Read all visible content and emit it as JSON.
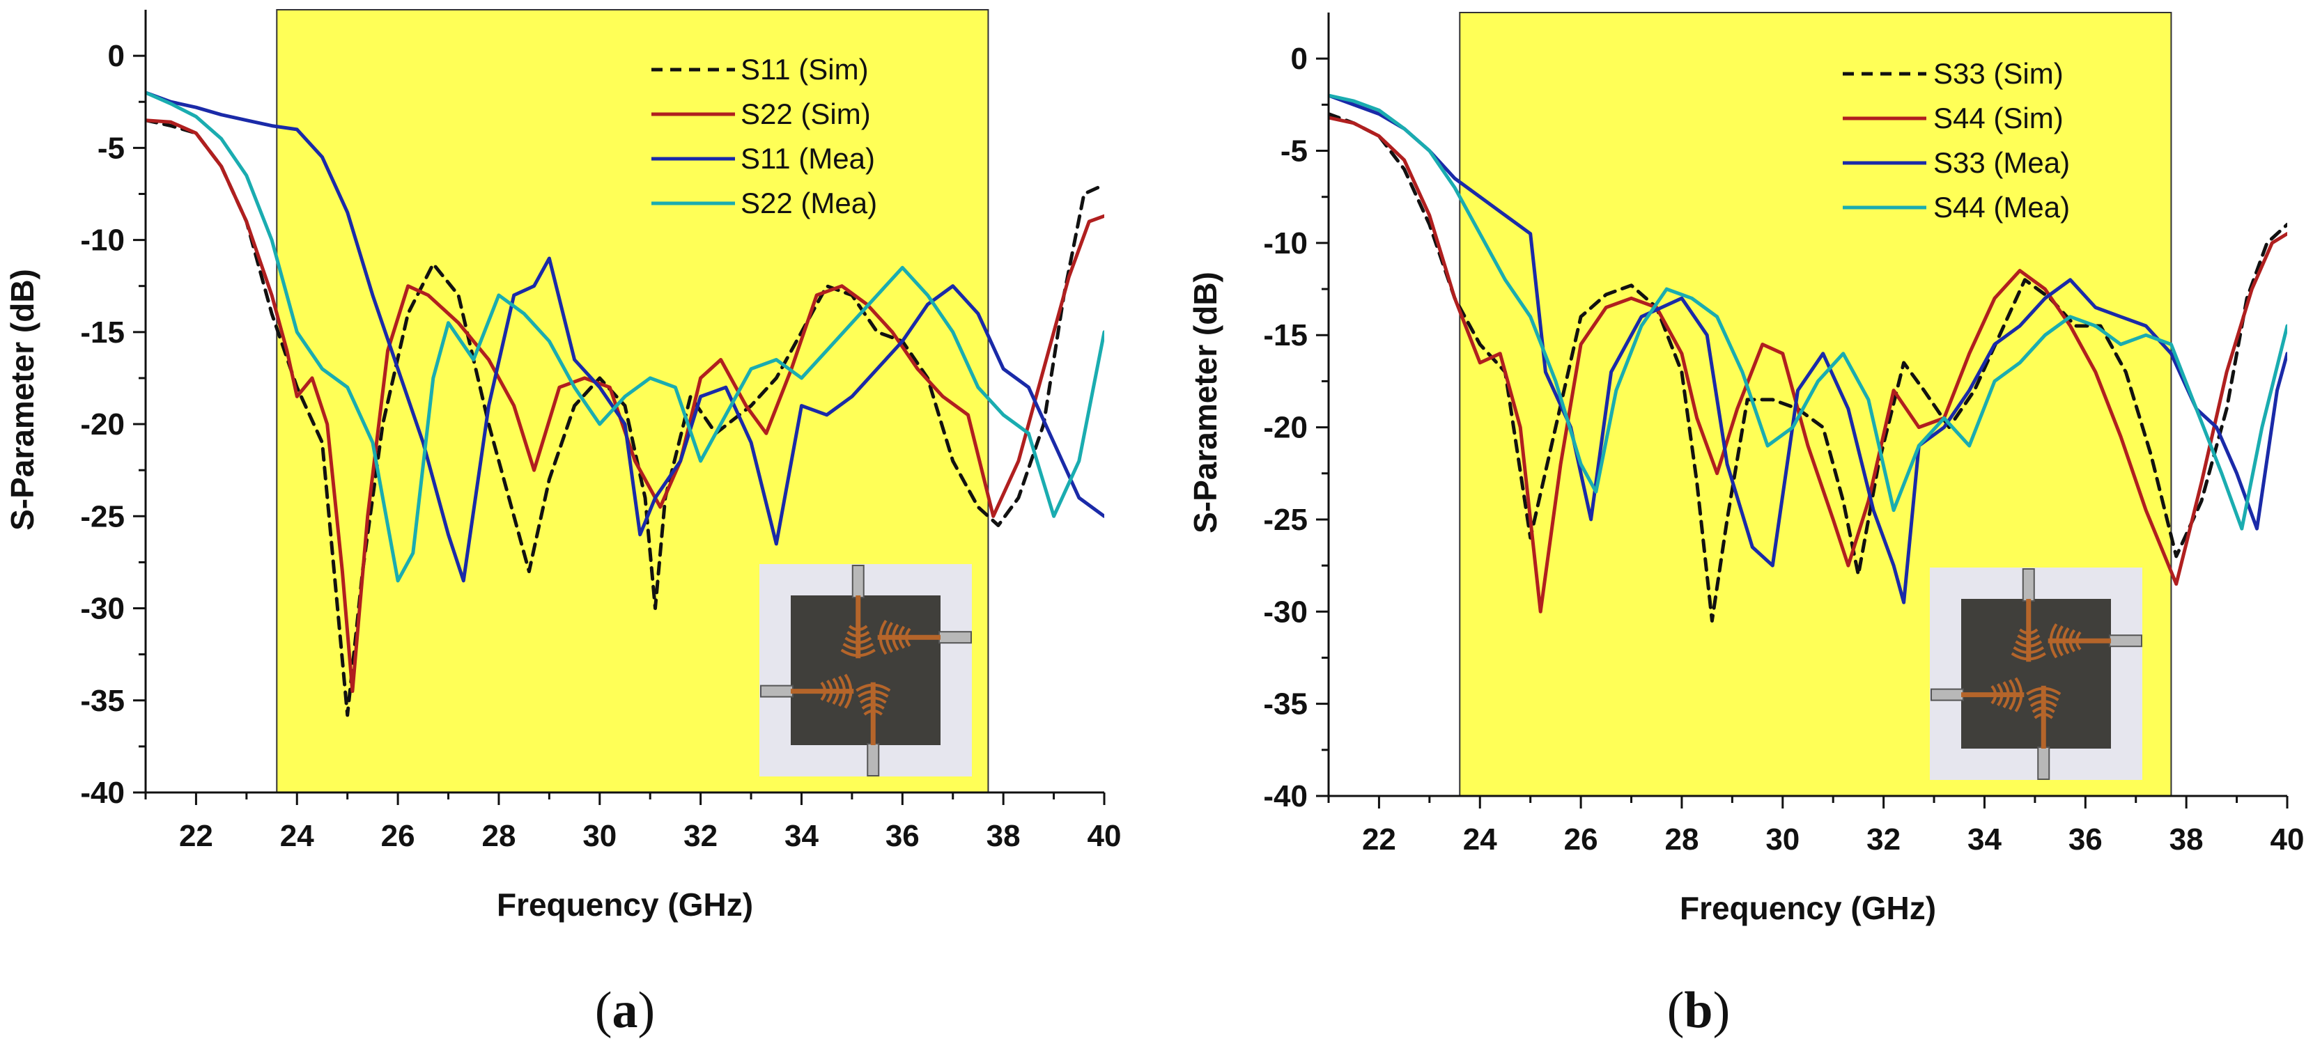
{
  "colors": {
    "highlight": "#ffff57",
    "sim_dashed": "#111111",
    "sim_red": "#b01f1f",
    "mea_blue": "#1a2aa8",
    "mea_cyan": "#1aacb0",
    "inset_bg": "#e6e6ee",
    "inset_board": "#403f3b",
    "inset_copper": "#b5652a"
  },
  "chart_data": [
    {
      "type": "line",
      "panel": "a",
      "caption": "(a)",
      "caption_letter": "a",
      "xlabel": "Frequency (GHz)",
      "ylabel": "S-Parameter (dB)",
      "xlim": [
        21,
        40
      ],
      "ylim": [
        -40,
        2.5
      ],
      "xticks": [
        22,
        24,
        26,
        28,
        30,
        32,
        34,
        36,
        38,
        40
      ],
      "yticks": [
        0,
        -5,
        -10,
        -15,
        -20,
        -25,
        -30,
        -35,
        -40
      ],
      "xtick_labels": [
        "22",
        "24",
        "26",
        "28",
        "30",
        "32",
        "34",
        "36",
        "38",
        "40"
      ],
      "ytick_labels": [
        "0",
        "-5",
        "-10",
        "-15",
        "-20",
        "-25",
        "-30",
        "-35",
        "-40"
      ],
      "highlight_band": [
        23.6,
        37.7
      ],
      "legend_position": "top-right",
      "series": [
        {
          "name": "S11 (Sim)",
          "style": "dashed",
          "color_key": "sim_dashed",
          "x": [
            21,
            21.5,
            22,
            22.5,
            23,
            23.5,
            24,
            24.5,
            25,
            25.3,
            25.7,
            26.2,
            26.7,
            27.2,
            27.8,
            28.3,
            28.6,
            29,
            29.5,
            30,
            30.5,
            30.9,
            31.1,
            31.3,
            31.8,
            32.3,
            33,
            33.5,
            34,
            34.5,
            35,
            35.5,
            36,
            36.5,
            37,
            37.5,
            37.9,
            38.3,
            38.8,
            39.2,
            39.6,
            40
          ],
          "y": [
            -3.5,
            -3.8,
            -4.2,
            -6,
            -9,
            -14,
            -18,
            -21,
            -35.8,
            -28,
            -20,
            -14,
            -11.3,
            -13,
            -20,
            -25,
            -28,
            -23,
            -19,
            -17.5,
            -19,
            -24,
            -30,
            -24,
            -18.5,
            -20.5,
            -19,
            -17.5,
            -15,
            -12.5,
            -13,
            -15,
            -15.5,
            -17.5,
            -22,
            -24.5,
            -25.5,
            -24,
            -20,
            -13,
            -7.5,
            -7
          ]
        },
        {
          "name": "S22 (Sim)",
          "style": "solid",
          "color_key": "sim_red",
          "x": [
            21,
            21.5,
            22,
            22.5,
            23,
            23.5,
            23.8,
            24,
            24.3,
            24.6,
            24.9,
            25.1,
            25.4,
            25.8,
            26.2,
            26.6,
            27.2,
            27.8,
            28.3,
            28.7,
            29.2,
            29.7,
            30.2,
            30.7,
            31.2,
            31.6,
            32,
            32.4,
            32.9,
            33.3,
            33.8,
            34.3,
            34.8,
            35.3,
            35.8,
            36.3,
            36.8,
            37.3,
            37.8,
            38.3,
            38.8,
            39.3,
            39.7,
            40
          ],
          "y": [
            -3.5,
            -3.6,
            -4.2,
            -6,
            -9,
            -13,
            -16,
            -18.5,
            -17.5,
            -20,
            -28,
            -34.5,
            -25,
            -16,
            -12.5,
            -13,
            -14.5,
            -16.5,
            -19,
            -22.5,
            -18,
            -17.5,
            -18,
            -22,
            -24.5,
            -22,
            -17.5,
            -16.5,
            -19,
            -20.5,
            -17,
            -13,
            -12.5,
            -13.5,
            -15,
            -17,
            -18.5,
            -19.5,
            -25,
            -22,
            -17,
            -12,
            -9,
            -8.7
          ]
        },
        {
          "name": "S11 (Mea)",
          "style": "solid",
          "color_key": "mea_blue",
          "x": [
            21,
            21.5,
            22,
            22.5,
            23,
            23.5,
            24,
            24.5,
            25,
            25.5,
            26,
            26.5,
            27,
            27.3,
            27.8,
            28.3,
            28.7,
            29,
            29.5,
            30,
            30.5,
            30.8,
            31.1,
            31.6,
            32,
            32.5,
            33,
            33.5,
            34,
            34.5,
            35,
            35.5,
            36,
            36.5,
            37,
            37.5,
            38,
            38.5,
            39,
            39.5,
            40
          ],
          "y": [
            -2,
            -2.5,
            -2.8,
            -3.2,
            -3.5,
            -3.8,
            -4,
            -5.5,
            -8.5,
            -13,
            -17,
            -21,
            -26,
            -28.5,
            -19,
            -13,
            -12.5,
            -11,
            -16.5,
            -18,
            -20,
            -26,
            -24,
            -22,
            -18.5,
            -18,
            -21,
            -26.5,
            -19,
            -19.5,
            -18.5,
            -17,
            -15.5,
            -13.5,
            -12.5,
            -14,
            -17,
            -18,
            -21,
            -24,
            -25
          ]
        },
        {
          "name": "S22 (Mea)",
          "style": "solid",
          "color_key": "mea_cyan",
          "x": [
            21,
            21.5,
            22,
            22.5,
            23,
            23.5,
            24,
            24.5,
            25,
            25.5,
            26,
            26.3,
            26.7,
            27,
            27.5,
            28,
            28.5,
            29,
            29.5,
            30,
            30.5,
            31,
            31.5,
            32,
            32.5,
            33,
            33.5,
            34,
            34.5,
            35,
            35.5,
            36,
            36.5,
            37,
            37.5,
            38,
            38.5,
            39,
            39.5,
            40
          ],
          "y": [
            -2,
            -2.6,
            -3.3,
            -4.5,
            -6.5,
            -10,
            -15,
            -17,
            -18,
            -21,
            -28.5,
            -27,
            -17.5,
            -14.5,
            -16.5,
            -13,
            -14,
            -15.5,
            -18,
            -20,
            -18.5,
            -17.5,
            -18,
            -22,
            -19.5,
            -17,
            -16.5,
            -17.5,
            -16,
            -14.5,
            -13,
            -11.5,
            -13,
            -15,
            -18,
            -19.5,
            -20.5,
            -25,
            -22,
            -15
          ]
        }
      ]
    },
    {
      "type": "line",
      "panel": "b",
      "caption": "(b)",
      "caption_letter": "b",
      "xlabel": "Frequency (GHz)",
      "ylabel": "S-Parameter (dB)",
      "xlim": [
        21,
        40
      ],
      "ylim": [
        -40,
        2.5
      ],
      "xticks": [
        22,
        24,
        26,
        28,
        30,
        32,
        34,
        36,
        38,
        40
      ],
      "yticks": [
        0,
        -5,
        -10,
        -15,
        -20,
        -25,
        -30,
        -35,
        -40
      ],
      "xtick_labels": [
        "22",
        "24",
        "26",
        "28",
        "30",
        "32",
        "34",
        "36",
        "38",
        "40"
      ],
      "ytick_labels": [
        "0",
        "-5",
        "-10",
        "-15",
        "-20",
        "-25",
        "-30",
        "-35",
        "-40"
      ],
      "highlight_band": [
        23.6,
        37.7
      ],
      "legend_position": "top-right",
      "series": [
        {
          "name": "S33 (Sim)",
          "style": "dashed",
          "color_key": "sim_dashed",
          "x": [
            21,
            21.5,
            22,
            22.5,
            23,
            23.5,
            24,
            24.5,
            25,
            25.5,
            26,
            26.5,
            27,
            27.5,
            28,
            28.3,
            28.6,
            28.9,
            29.3,
            29.8,
            30.3,
            30.8,
            31.2,
            31.5,
            31.9,
            32.4,
            32.8,
            33.3,
            33.8,
            34.3,
            34.8,
            35.3,
            35.8,
            36.3,
            36.8,
            37.3,
            37.8,
            38.3,
            38.8,
            39.2,
            39.6,
            40
          ],
          "y": [
            -3,
            -3.5,
            -4.2,
            -6,
            -9,
            -13,
            -15.5,
            -17,
            -26,
            -20,
            -14,
            -12.8,
            -12.3,
            -13.5,
            -17,
            -23,
            -30.5,
            -25,
            -18.5,
            -18.5,
            -19,
            -20,
            -24,
            -28,
            -22,
            -16.5,
            -18,
            -20,
            -18,
            -15,
            -12,
            -13,
            -14.5,
            -14.5,
            -17,
            -21.5,
            -27,
            -24,
            -19,
            -13,
            -10,
            -9
          ]
        },
        {
          "name": "S44 (Sim)",
          "style": "solid",
          "color_key": "sim_red",
          "x": [
            21,
            21.5,
            22,
            22.5,
            23,
            23.5,
            24,
            24.4,
            24.8,
            25.2,
            25.6,
            26,
            26.5,
            27,
            27.5,
            28,
            28.3,
            28.7,
            29.1,
            29.6,
            30,
            30.5,
            31,
            31.3,
            31.7,
            32.2,
            32.7,
            33.2,
            33.7,
            34.2,
            34.7,
            35.2,
            35.7,
            36.2,
            36.7,
            37.2,
            37.8,
            38.3,
            38.8,
            39.3,
            39.7,
            40
          ],
          "y": [
            -3.2,
            -3.5,
            -4.2,
            -5.5,
            -8.5,
            -13,
            -16.5,
            -16,
            -20,
            -30,
            -22,
            -15.5,
            -13.5,
            -13,
            -13.5,
            -16,
            -19.5,
            -22.5,
            -19,
            -15.5,
            -16,
            -21,
            -25,
            -27.5,
            -24,
            -18,
            -20,
            -19.5,
            -16,
            -13,
            -11.5,
            -12.5,
            -14.5,
            -17,
            -20.5,
            -24.5,
            -28.5,
            -23,
            -17,
            -12.5,
            -10,
            -9.5
          ]
        },
        {
          "name": "S33 (Mea)",
          "style": "solid",
          "color_key": "mea_blue",
          "x": [
            21,
            21.5,
            22,
            22.5,
            23,
            23.5,
            24,
            24.5,
            25,
            25.3,
            25.8,
            26.2,
            26.6,
            27.2,
            27.6,
            28,
            28.5,
            28.9,
            29.4,
            29.8,
            30.3,
            30.8,
            31.3,
            31.8,
            32.2,
            32.4,
            32.7,
            33.2,
            33.7,
            34.2,
            34.7,
            35.2,
            35.7,
            36.2,
            36.7,
            37.2,
            37.7,
            38.2,
            38.6,
            39,
            39.4,
            39.8,
            40
          ],
          "y": [
            -2,
            -2.5,
            -3,
            -3.8,
            -5,
            -6.5,
            -7.5,
            -8.5,
            -9.5,
            -17,
            -20,
            -25,
            -17,
            -14,
            -13.5,
            -13,
            -15,
            -22,
            -26.5,
            -27.5,
            -18,
            -16,
            -19,
            -24.5,
            -27.5,
            -29.5,
            -21,
            -20,
            -18,
            -15.5,
            -14.5,
            -13,
            -12,
            -13.5,
            -14,
            -14.5,
            -16,
            -19,
            -20,
            -22.5,
            -25.5,
            -18,
            -16
          ]
        },
        {
          "name": "S44 (Mea)",
          "style": "solid",
          "color_key": "mea_cyan",
          "x": [
            21,
            21.5,
            22,
            22.5,
            23,
            23.5,
            24,
            24.5,
            25,
            25.5,
            26,
            26.3,
            26.7,
            27.2,
            27.7,
            28.2,
            28.7,
            29.2,
            29.7,
            30.2,
            30.7,
            31.2,
            31.7,
            32.2,
            32.7,
            33.2,
            33.7,
            34.2,
            34.7,
            35.2,
            35.7,
            36.2,
            36.7,
            37.2,
            37.7,
            38.2,
            38.7,
            39.1,
            39.5,
            40
          ],
          "y": [
            -2,
            -2.3,
            -2.8,
            -3.8,
            -5,
            -7,
            -9.5,
            -12,
            -14,
            -17.5,
            -22,
            -23.5,
            -18,
            -14.5,
            -12.5,
            -13,
            -14,
            -17,
            -21,
            -20,
            -17.5,
            -16,
            -18.5,
            -24.5,
            -21,
            -19.5,
            -21,
            -17.5,
            -16.5,
            -15,
            -14,
            -14.5,
            -15.5,
            -15,
            -15.5,
            -19,
            -22.5,
            -25.5,
            -20,
            -14.5
          ]
        }
      ]
    }
  ]
}
